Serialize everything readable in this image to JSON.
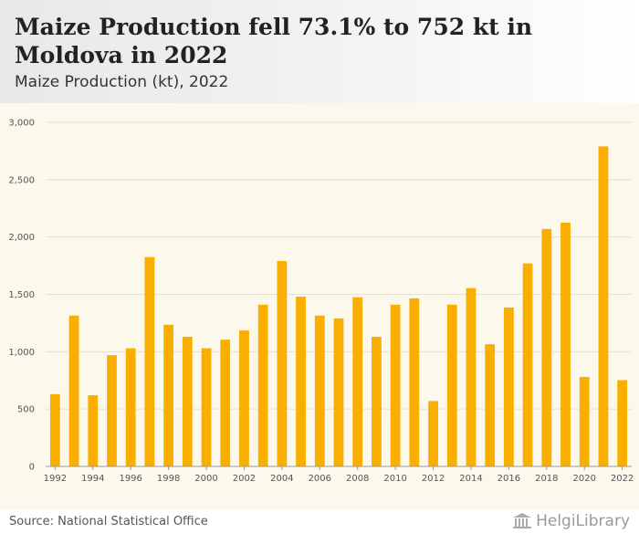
{
  "header": {
    "title": "Maize Production fell 73.1% to 752 kt in Moldova in 2022",
    "subtitle": "Maize Production (kt), 2022"
  },
  "footer": {
    "source": "Source: National Statistical Office",
    "logo_text": "HelgiLibrary"
  },
  "colors": {
    "bar": "#f9ae00",
    "plot_background": "#fdf8ec",
    "grid": "#e6e0d2"
  },
  "chart_data": {
    "type": "bar",
    "title": "Maize Production fell 73.1% to 752 kt in Moldova in 2022",
    "subtitle": "Maize Production (kt), 2022",
    "xlabel": "",
    "ylabel": "",
    "ylim": [
      0,
      3000
    ],
    "yticks": [
      0,
      500,
      1000,
      1500,
      2000,
      2500,
      3000
    ],
    "ytick_labels": [
      "0",
      "500",
      "1,000",
      "1,500",
      "2,000",
      "2,500",
      "3,000"
    ],
    "grid": true,
    "categories": [
      1992,
      1993,
      1994,
      1995,
      1996,
      1997,
      1998,
      1999,
      2000,
      2001,
      2002,
      2003,
      2004,
      2005,
      2006,
      2007,
      2008,
      2009,
      2010,
      2011,
      2012,
      2013,
      2014,
      2015,
      2016,
      2017,
      2018,
      2019,
      2020,
      2021,
      2022
    ],
    "xtick_labels": [
      "1992",
      "1994",
      "1996",
      "1998",
      "2000",
      "2002",
      "2004",
      "2006",
      "2008",
      "2010",
      "2012",
      "2014",
      "2016",
      "2018",
      "2020",
      "2022"
    ],
    "values": [
      630,
      1315,
      620,
      970,
      1030,
      1825,
      1235,
      1130,
      1030,
      1105,
      1185,
      1410,
      1790,
      1480,
      1315,
      1290,
      1475,
      1130,
      1410,
      1465,
      570,
      1410,
      1555,
      1065,
      1385,
      1770,
      2070,
      2125,
      780,
      2790,
      752
    ]
  }
}
